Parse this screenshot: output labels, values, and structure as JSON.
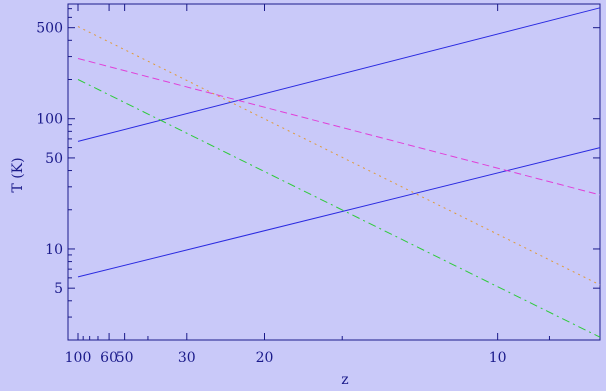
{
  "chart_data": {
    "type": "line",
    "xlabel": "z",
    "ylabel": "T (K)",
    "x_scale": "reciprocal",
    "y_scale": "log",
    "x_ticks": [
      100,
      60,
      50,
      30,
      20,
      10
    ],
    "y_ticks": [
      500,
      100,
      50,
      10,
      5
    ],
    "xlim": [
      100,
      8.2
    ],
    "ylim": [
      2,
      760
    ],
    "grid": false,
    "colors": {
      "background": "#c9c9f9",
      "axis": "#1a1a8a",
      "blue": "#2a2ae0",
      "magenta": "#e040d8",
      "orange": "#e09a3a",
      "green": "#2ecb3a"
    },
    "series": [
      {
        "style": "solid",
        "color": "#2a2ae0",
        "x": [
          100,
          8.2
        ],
        "y": [
          67,
          710
        ]
      },
      {
        "style": "solid",
        "color": "#2a2ae0",
        "x": [
          100,
          8.2
        ],
        "y": [
          6.1,
          60
        ]
      },
      {
        "style": "dashed",
        "color": "#e040d8",
        "x": [
          100,
          8.2
        ],
        "y": [
          290,
          26
        ]
      },
      {
        "style": "dotted",
        "color": "#e09a3a",
        "x": [
          100,
          8.2
        ],
        "y": [
          510,
          5.3
        ]
      },
      {
        "style": "dashdot",
        "color": "#2ecb3a",
        "x": [
          100,
          8.2
        ],
        "y": [
          200,
          2.1
        ]
      }
    ]
  }
}
